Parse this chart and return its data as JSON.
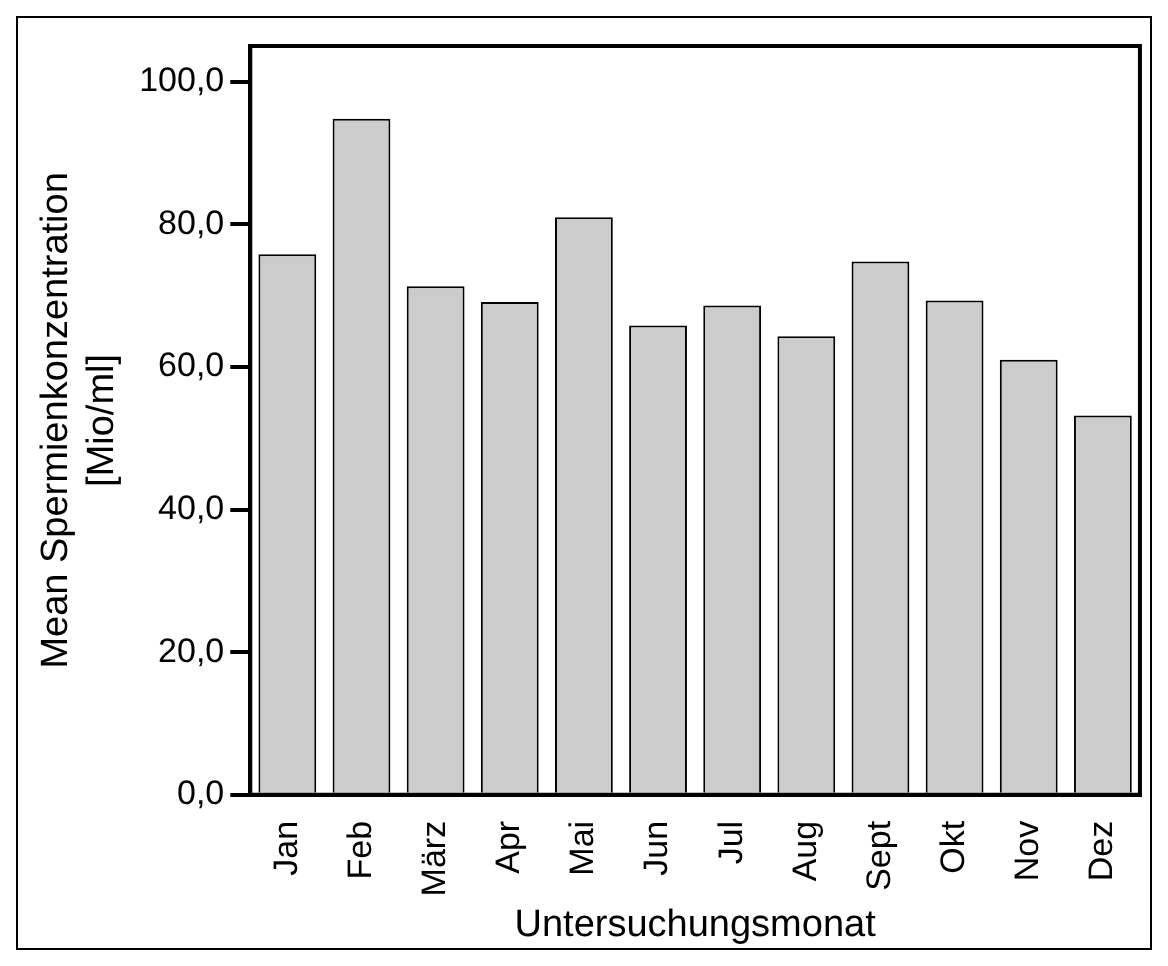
{
  "chart_data": {
    "type": "bar",
    "categories": [
      "Jan",
      "Feb",
      "März",
      "Apr",
      "Mai",
      "Jun",
      "Jul",
      "Aug",
      "Sept",
      "Okt",
      "Nov",
      "Dez"
    ],
    "values": [
      75.8,
      94.8,
      71.3,
      69.1,
      81.0,
      65.8,
      68.6,
      64.3,
      74.8,
      69.3,
      61.0,
      53.2
    ],
    "color": "#cccccc",
    "xlabel": "Untersuchungsmonat",
    "ylabel": "Mean Spermienkonzentration\n[Mio/ml]",
    "ylim": [
      0,
      105
    ],
    "yticks": [
      {
        "value": 0,
        "label": "0,0"
      },
      {
        "value": 20,
        "label": "20,0"
      },
      {
        "value": 40,
        "label": "40,0"
      },
      {
        "value": 60,
        "label": "60,0"
      },
      {
        "value": 80,
        "label": "80,0"
      },
      {
        "value": 100,
        "label": "100,0"
      }
    ],
    "grid": false,
    "legend": false
  }
}
